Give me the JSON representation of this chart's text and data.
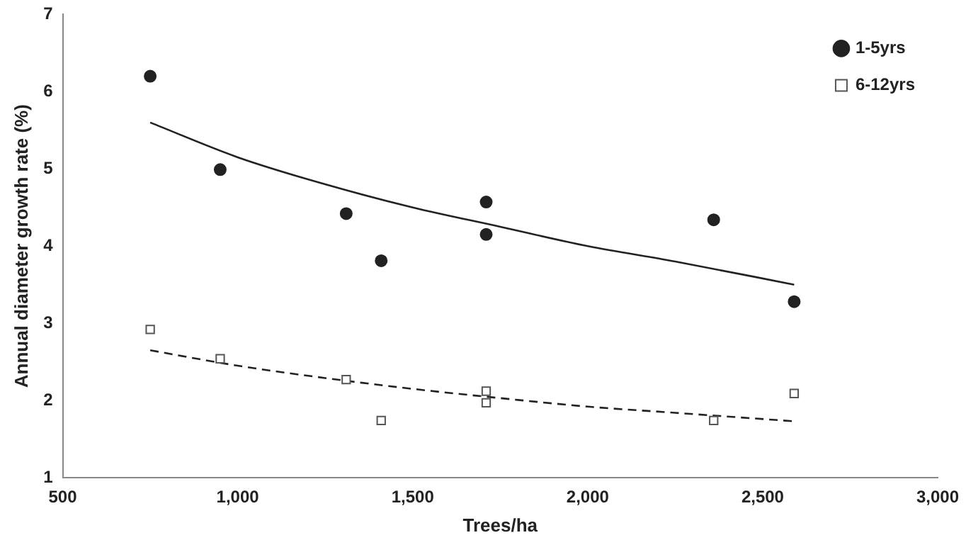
{
  "chart_data": {
    "type": "scatter",
    "xlabel": "Trees/ha",
    "ylabel": "Annual diameter growth rate (%)",
    "xlim": [
      500,
      3000
    ],
    "xticks": [
      500,
      {
        "value": 1000,
        "label": "1,000"
      },
      {
        "value": 1500,
        "label": "1,500"
      },
      {
        "value": 2000,
        "label": "2,000"
      },
      {
        "value": 2500,
        "label": "2,500"
      },
      {
        "value": 3000,
        "label": "3,000"
      }
    ],
    "ylim": [
      1,
      7
    ],
    "yticks": [
      1,
      2,
      3,
      4,
      5,
      6,
      7
    ],
    "grid": false,
    "legend": "top right",
    "series": [
      {
        "name": "1-5yrs",
        "type": "scatter",
        "marker": "circle",
        "color": "#222222",
        "x": [
          750,
          950,
          1310,
          1410,
          1710,
          1710,
          2360,
          2590
        ],
        "values": [
          6.2,
          4.99,
          4.42,
          3.81,
          4.57,
          4.15,
          4.34,
          3.28
        ]
      },
      {
        "name": "6-12yrs",
        "type": "scatter",
        "marker": "square",
        "color": "#555555",
        "x": [
          750,
          950,
          1310,
          1410,
          1710,
          1710,
          2360,
          2590
        ],
        "values": [
          2.92,
          2.54,
          2.27,
          1.74,
          2.12,
          1.97,
          1.74,
          2.09
        ]
      },
      {
        "type": "line",
        "marker": "none",
        "line_style": "solid",
        "color": "#222222",
        "x": [
          750,
          1000,
          1250,
          1500,
          1750,
          2000,
          2250,
          2590
        ],
        "values": [
          5.6,
          5.15,
          4.8,
          4.5,
          4.25,
          4.0,
          3.8,
          3.5
        ]
      },
      {
        "type": "line",
        "marker": "none",
        "line_style": "dashed",
        "color": "#222222",
        "x": [
          750,
          1000,
          1250,
          1500,
          1750,
          2000,
          2250,
          2590
        ],
        "values": [
          2.65,
          2.45,
          2.29,
          2.15,
          2.03,
          1.92,
          1.84,
          1.73
        ]
      }
    ]
  }
}
